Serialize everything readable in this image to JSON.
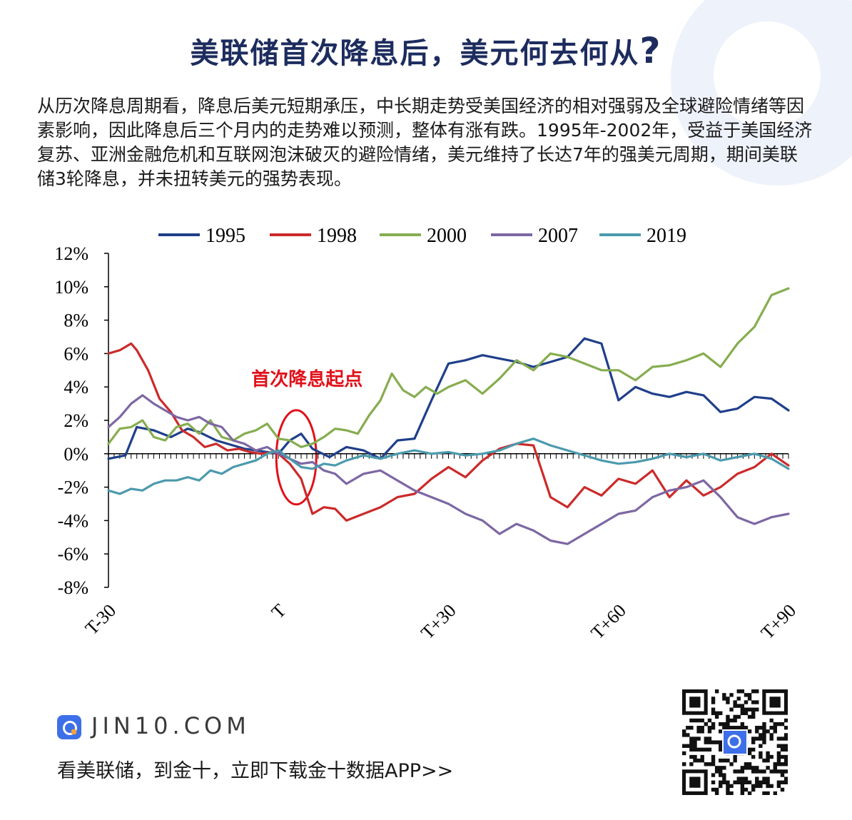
{
  "header": {
    "title": "美联储首次降息后，美元何去何从",
    "title_mark": "?"
  },
  "intro": {
    "text": "从历次降息周期看，降息后美元短期承压，中长期走势受美国经济的相对强弱及全球避险情绪等因素影响，因此降息后三个月内的走势难以预测，整体有涨有跌。1995年-2002年，受益于美国经济复苏、亚洲金融危机和互联网泡沫破灭的避险情绪，美元维持了长达7年的强美元周期，期间美联储3轮降息，并未扭转美元的强势表现。"
  },
  "colors": {
    "title": "#1d2c5e",
    "s1995": "#1f3f8a",
    "s1998": "#cc2a2a",
    "s2000": "#86ad4f",
    "s2007": "#7d67a3",
    "s2019": "#4b9aad",
    "annotation": "#e0111a"
  },
  "chart_data": {
    "type": "line",
    "title": "",
    "xlabel": "",
    "ylabel": "",
    "x_range": [
      -30,
      90
    ],
    "x_ticks": [
      -30,
      0,
      30,
      60,
      90
    ],
    "x_tick_labels": [
      "T-30",
      "T",
      "T+30",
      "T+60",
      "T+90"
    ],
    "ylim": [
      -8,
      12
    ],
    "y_ticks": [
      12,
      10,
      8,
      6,
      4,
      2,
      0,
      -2,
      -4,
      -6,
      -8
    ],
    "y_tick_labels": [
      "12%",
      "10%",
      "8%",
      "6%",
      "4%",
      "2%",
      "0%",
      "-2%",
      "-4%",
      "-6%",
      "-8%"
    ],
    "legend_position": "top",
    "grid": false,
    "annotation": {
      "text": "首次降息起点",
      "x": 0,
      "y": 0
    },
    "series": [
      {
        "name": "1995",
        "color": "#1f3f8a",
        "x": [
          -30,
          -27,
          -25,
          -22,
          -19,
          -16,
          -14,
          -11,
          -8,
          -6,
          -4,
          -2,
          0,
          2,
          4,
          6,
          9,
          12,
          15,
          18,
          21,
          24,
          27,
          30,
          33,
          36,
          39,
          42,
          45,
          48,
          51,
          54,
          57,
          60,
          63,
          66,
          69,
          72,
          75,
          78,
          81,
          84,
          87,
          90
        ],
        "y": [
          -0.3,
          -0.1,
          1.6,
          1.4,
          1.0,
          1.5,
          1.3,
          0.8,
          0.5,
          0.3,
          0.2,
          0.1,
          0.0,
          0.8,
          1.2,
          0.3,
          -0.2,
          0.4,
          0.2,
          -0.3,
          0.8,
          0.9,
          3.2,
          5.4,
          5.6,
          5.9,
          5.7,
          5.5,
          5.2,
          5.5,
          5.8,
          6.9,
          6.6,
          3.2,
          4.0,
          3.6,
          3.4,
          3.7,
          3.5,
          2.5,
          2.7,
          3.4,
          3.3,
          2.6
        ]
      },
      {
        "name": "1998",
        "color": "#cc2a2a",
        "x": [
          -30,
          -28,
          -26,
          -25,
          -23,
          -21,
          -19,
          -17,
          -15,
          -13,
          -11,
          -9,
          -7,
          -5,
          -3,
          -1,
          0,
          2,
          4,
          6,
          8,
          10,
          12,
          15,
          18,
          21,
          24,
          27,
          30,
          33,
          36,
          39,
          42,
          45,
          48,
          51,
          54,
          57,
          60,
          63,
          66,
          69,
          72,
          75,
          78,
          81,
          84,
          87,
          90
        ],
        "y": [
          6.0,
          6.2,
          6.6,
          6.2,
          5.0,
          3.3,
          2.5,
          1.4,
          1.0,
          0.4,
          0.6,
          0.2,
          0.3,
          0.1,
          0.0,
          0.1,
          0.0,
          -0.6,
          -1.5,
          -3.6,
          -3.2,
          -3.3,
          -4.0,
          -3.6,
          -3.2,
          -2.6,
          -2.4,
          -1.5,
          -0.8,
          -1.4,
          -0.4,
          0.3,
          0.6,
          0.5,
          -2.6,
          -3.2,
          -2.0,
          -2.5,
          -1.5,
          -1.8,
          -1.0,
          -2.6,
          -1.6,
          -2.5,
          -2.0,
          -1.2,
          -0.8,
          0.0,
          -0.7
        ]
      },
      {
        "name": "2000",
        "color": "#86ad4f",
        "x": [
          -30,
          -28,
          -26,
          -24,
          -22,
          -20,
          -18,
          -16,
          -14,
          -12,
          -10,
          -8,
          -6,
          -4,
          -2,
          0,
          2,
          4,
          6,
          8,
          10,
          12,
          14,
          16,
          18,
          20,
          22,
          24,
          26,
          28,
          30,
          33,
          36,
          39,
          42,
          45,
          48,
          51,
          54,
          57,
          60,
          63,
          66,
          69,
          72,
          75,
          78,
          81,
          84,
          87,
          90
        ],
        "y": [
          0.6,
          1.5,
          1.6,
          2.0,
          1.0,
          0.8,
          1.6,
          1.8,
          1.2,
          2.0,
          1.0,
          0.8,
          1.2,
          1.4,
          1.8,
          0.9,
          0.8,
          0.4,
          0.6,
          1.0,
          1.5,
          1.4,
          1.2,
          2.3,
          3.2,
          4.8,
          3.8,
          3.4,
          4.0,
          3.6,
          4.0,
          4.4,
          3.6,
          4.5,
          5.6,
          5.0,
          6.0,
          5.8,
          5.4,
          5.0,
          5.0,
          4.4,
          5.2,
          5.3,
          5.6,
          6.0,
          5.2,
          6.6,
          7.6,
          9.5,
          9.9
        ]
      },
      {
        "name": "2007",
        "color": "#7d67a3",
        "x": [
          -30,
          -28,
          -26,
          -24,
          -22,
          -20,
          -18,
          -16,
          -14,
          -12,
          -10,
          -8,
          -6,
          -4,
          -2,
          0,
          2,
          4,
          6,
          8,
          10,
          12,
          15,
          18,
          21,
          24,
          27,
          30,
          33,
          36,
          39,
          42,
          45,
          48,
          51,
          54,
          57,
          60,
          63,
          66,
          69,
          72,
          75,
          78,
          81,
          84,
          87,
          90
        ],
        "y": [
          1.6,
          2.2,
          3.0,
          3.5,
          3.0,
          2.6,
          2.2,
          2.0,
          2.2,
          1.8,
          1.6,
          0.8,
          0.6,
          0.2,
          0.4,
          0.0,
          -0.3,
          -0.6,
          -0.5,
          -1.0,
          -1.2,
          -1.8,
          -1.2,
          -1.0,
          -1.6,
          -2.2,
          -2.6,
          -3.0,
          -3.6,
          -4.0,
          -4.8,
          -4.2,
          -4.6,
          -5.2,
          -5.4,
          -4.8,
          -4.2,
          -3.6,
          -3.4,
          -2.6,
          -2.2,
          -2.0,
          -1.6,
          -2.6,
          -3.8,
          -4.2,
          -3.8,
          -3.6
        ]
      },
      {
        "name": "2019",
        "color": "#4b9aad",
        "x": [
          -30,
          -28,
          -26,
          -24,
          -22,
          -20,
          -18,
          -16,
          -14,
          -12,
          -10,
          -8,
          -6,
          -4,
          -2,
          0,
          2,
          4,
          6,
          8,
          10,
          12,
          15,
          18,
          21,
          24,
          27,
          30,
          33,
          36,
          39,
          42,
          45,
          48,
          51,
          54,
          57,
          60,
          63,
          66,
          69,
          72,
          75,
          78,
          81,
          84,
          87,
          90
        ],
        "y": [
          -2.2,
          -2.4,
          -2.1,
          -2.2,
          -1.8,
          -1.6,
          -1.6,
          -1.4,
          -1.6,
          -1.0,
          -1.2,
          -0.8,
          -0.6,
          -0.4,
          0.0,
          0.2,
          -0.3,
          -0.8,
          -0.9,
          -0.6,
          -0.7,
          -0.4,
          -0.1,
          -0.3,
          0.0,
          0.2,
          0.0,
          0.1,
          -0.1,
          0.0,
          0.2,
          0.6,
          0.9,
          0.5,
          0.2,
          -0.1,
          -0.4,
          -0.6,
          -0.5,
          -0.3,
          0.0,
          -0.2,
          0.0,
          -0.4,
          -0.2,
          0.0,
          -0.3,
          -0.9
        ]
      }
    ]
  },
  "footer": {
    "site": "JIN10.COM",
    "slogan": "看美联储，到金十，立即下载金十数据APP>>"
  }
}
